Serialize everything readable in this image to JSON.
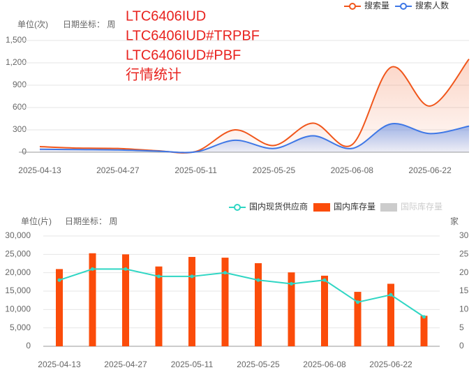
{
  "chart_data": [
    {
      "type": "line",
      "y_unit_label": "单位(次)",
      "x_unit_label": "日期坐标： 周",
      "annotations": [
        "LTC6406IUD",
        "LTC6406IUD#TRPBF",
        "LTC6406IUD#PBF",
        "行情统计"
      ],
      "categories": [
        "2025-04-13",
        null,
        "2025-04-27",
        null,
        "2025-05-11",
        null,
        "2025-05-25",
        null,
        "2025-06-08",
        null,
        "2025-06-22",
        null
      ],
      "series": [
        {
          "name": "搜索量",
          "color": "#f0561b",
          "values": [
            75,
            55,
            50,
            20,
            10,
            300,
            90,
            390,
            100,
            1140,
            620,
            1250
          ]
        },
        {
          "name": "搜索人数",
          "color": "#3e77e6",
          "values": [
            40,
            35,
            30,
            15,
            5,
            160,
            50,
            220,
            50,
            380,
            250,
            350
          ]
        }
      ],
      "ylim": [
        0,
        1500
      ],
      "yticks": [
        0,
        300,
        600,
        900,
        {
          "value": 1200,
          "label": "1,200"
        },
        {
          "value": 1500,
          "label": "1,500"
        }
      ],
      "grid": true,
      "legend": "top-right"
    },
    {
      "type": "bar-line",
      "y_unit_label": "单位(片)",
      "x_unit_label": "日期坐标： 周",
      "y2_unit_label": "家",
      "categories": [
        "2025-04-13",
        null,
        "2025-04-27",
        null,
        "2025-05-11",
        null,
        "2025-05-25",
        null,
        "2025-06-08",
        null,
        "2025-06-22",
        null
      ],
      "series": [
        {
          "name": "国内现货供应商",
          "color": "#2fd6c4",
          "type": "line",
          "axis": "y2",
          "values": [
            18,
            21,
            21,
            19,
            19,
            20,
            18,
            17,
            18,
            12,
            14,
            8
          ]
        },
        {
          "name": "国内库存量",
          "color": "#fb4c0a",
          "type": "bar",
          "values": [
            21000,
            25300,
            25000,
            21700,
            24300,
            24100,
            22600,
            20100,
            19200,
            14800,
            17000,
            8300
          ]
        },
        {
          "name": "国际库存量",
          "color": "#cccccc",
          "type": "bar",
          "hidden": true
        }
      ],
      "ylim": [
        0,
        30000
      ],
      "yticks": [
        0,
        {
          "value": 5000,
          "label": "5,000"
        },
        {
          "value": 10000,
          "label": "10,000"
        },
        {
          "value": 15000,
          "label": "15,000"
        },
        {
          "value": 20000,
          "label": "20,000"
        },
        {
          "value": 25000,
          "label": "25,000"
        },
        {
          "value": 30000,
          "label": "30,000"
        }
      ],
      "y2lim": [
        0,
        30
      ],
      "y2ticks": [
        0,
        5,
        10,
        15,
        20,
        25,
        30
      ],
      "grid": true,
      "legend": "top-right"
    }
  ]
}
